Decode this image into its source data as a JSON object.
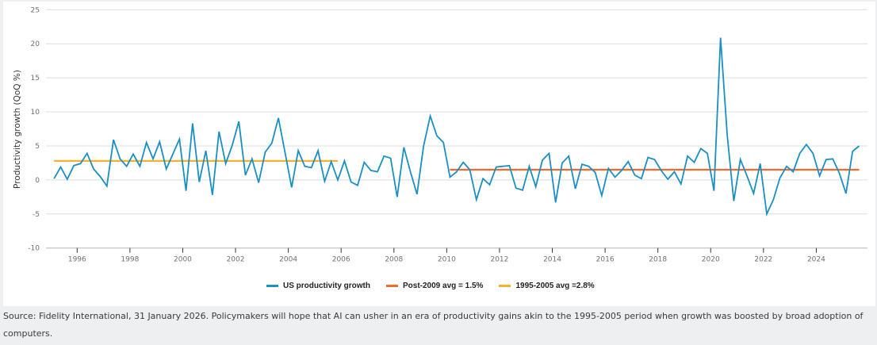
{
  "caption": "Source: Fidelity International, 31 January 2026. Policymakers will hope that AI can usher in an era of productivity gains akin to the 1995-2005 period when growth was boosted by broad adoption of computers.",
  "colors": {
    "series": "#1a8fc4",
    "post2009": "#f26a2e",
    "pre2005": "#f8b12f",
    "grid": "#dddddd",
    "axis": "#b5b5b5"
  },
  "chart_data": {
    "type": "line",
    "title": "",
    "xlabel": "",
    "ylabel": "Productivity growth (QoQ %)",
    "ylim": [
      -10,
      25
    ],
    "yticks": [
      25,
      20,
      15,
      10,
      5,
      0,
      -5,
      -10
    ],
    "xticks": [
      "1996",
      "1998",
      "2000",
      "2002",
      "2004",
      "2006",
      "2008",
      "2010",
      "2012",
      "2014",
      "2016",
      "2018",
      "2020",
      "2022",
      "2024"
    ],
    "grid": true,
    "legend_position": "bottom-center",
    "x_start": "1995 Q1",
    "x_end": "2025 Q3",
    "frequency": "quarterly",
    "series": [
      {
        "name": "US productivity growth",
        "values": [
          0.2,
          1.9,
          0.1,
          2.1,
          2.4,
          3.9,
          1.6,
          0.5,
          -0.9,
          5.9,
          3.1,
          2.0,
          3.8,
          2.0,
          5.5,
          3.1,
          5.6,
          1.6,
          3.8,
          6.0,
          -1.6,
          8.3,
          -0.3,
          4.3,
          -2.2,
          7.1,
          2.4,
          5.1,
          8.6,
          0.7,
          3.1,
          -0.4,
          4.1,
          5.4,
          9.1,
          4.0,
          -1.1,
          4.3,
          2.0,
          1.8,
          4.3,
          -0.2,
          2.7,
          0.0,
          2.8,
          -0.3,
          -0.8,
          2.6,
          1.4,
          1.2,
          3.5,
          3.2,
          -2.5,
          4.8,
          1.2,
          -2.1,
          5.0,
          9.4,
          6.5,
          5.5,
          0.4,
          1.2,
          2.6,
          1.5,
          -2.9,
          0.2,
          -0.7,
          1.9,
          2.0,
          2.1,
          -1.2,
          -1.5,
          2.0,
          -1.0,
          2.9,
          3.9,
          -3.3,
          2.5,
          3.5,
          -1.3,
          2.3,
          2.0,
          1.1,
          -2.3,
          1.7,
          0.4,
          1.4,
          2.7,
          0.7,
          0.2,
          3.3,
          3.0,
          1.4,
          0.1,
          1.2,
          -0.6,
          3.5,
          2.6,
          4.6,
          3.9,
          -1.6,
          20.9,
          6.6,
          -3.1,
          3.0,
          0.6,
          -2.0,
          2.4,
          -5.0,
          -2.9,
          0.3,
          2.0,
          1.2,
          3.9,
          5.2,
          3.9,
          0.6,
          3.0,
          3.1,
          1.0,
          -2.0,
          4.2,
          5.0
        ]
      },
      {
        "name": "Post-2009 avg = 1.5%",
        "value": 1.5,
        "from": "2010 Q1",
        "to": "2025 Q3"
      },
      {
        "name": "1995-2005 avg =2.8%",
        "value": 2.8,
        "from": "1995 Q1",
        "to": "2005 Q4"
      }
    ]
  }
}
